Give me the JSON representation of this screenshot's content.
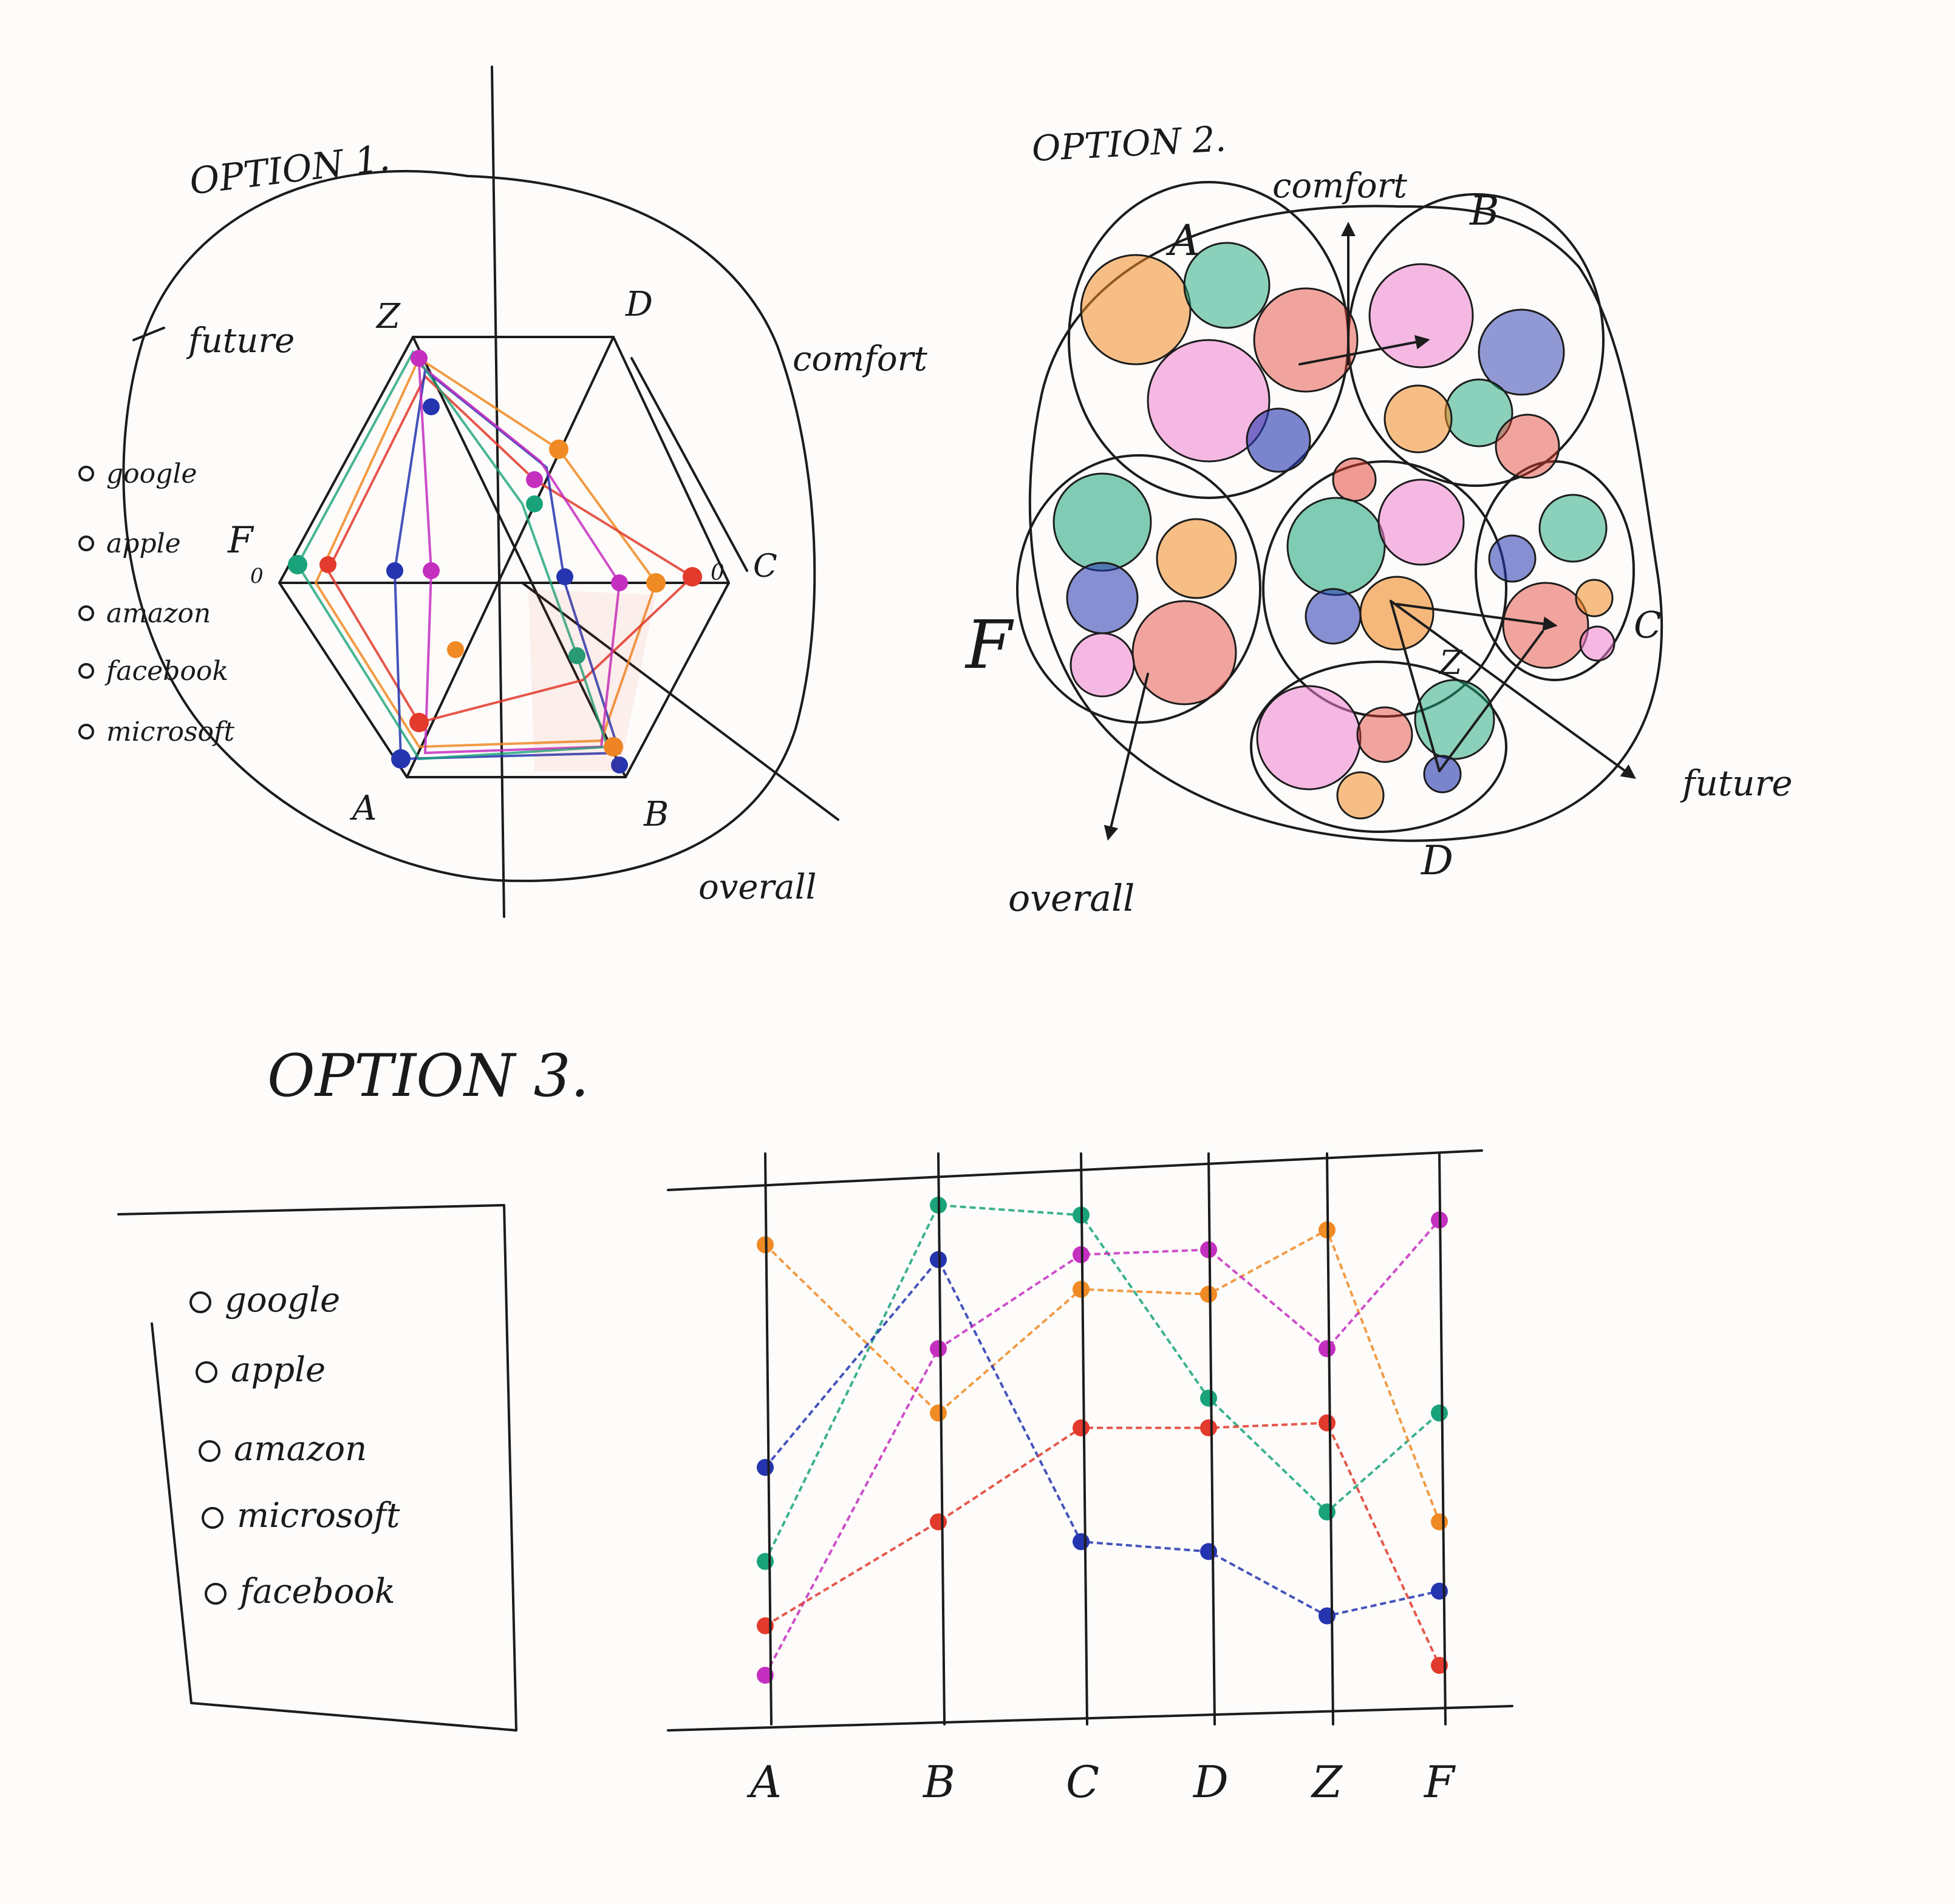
{
  "colors": {
    "ink": "#1c1c1c",
    "paper": "#fdfcfa",
    "google": "#1aa37a",
    "apple": "#f08a24",
    "amazon": "#2535b0",
    "facebook": "#c42fc0",
    "microsoft": "#e23a2c",
    "pink": "#ef7fd0"
  },
  "option1": {
    "title": "OPTION 1.",
    "axes": [
      "Z",
      "D",
      "C",
      "B",
      "A",
      "F"
    ],
    "outer_labels": {
      "future": "future",
      "comfort": "comfort",
      "overall": "overall"
    },
    "legend": [
      "google",
      "apple",
      "amazon",
      "facebook",
      "microsoft"
    ],
    "zero_label": "0"
  },
  "option2": {
    "title": "OPTION 2.",
    "cluster_labels": [
      "A",
      "B",
      "C",
      "D",
      "F",
      "Z"
    ],
    "arrow_labels": {
      "comfort": "comfort",
      "future": "future",
      "overall": "overall"
    }
  },
  "option3": {
    "title": "OPTION 3.",
    "legend": [
      "google",
      "apple",
      "amazon",
      "microsoft",
      "facebook"
    ],
    "axes": [
      "A",
      "B",
      "C",
      "D",
      "Z",
      "F"
    ],
    "series": [
      {
        "name": "google",
        "color": "#1aa37a",
        "values": [
          0.28,
          1.0,
          0.98,
          0.61,
          0.38,
          0.58
        ]
      },
      {
        "name": "apple",
        "color": "#f08a24",
        "values": [
          0.92,
          0.58,
          0.83,
          0.82,
          0.95,
          0.36
        ]
      },
      {
        "name": "amazon",
        "color": "#2535b0",
        "values": [
          0.47,
          0.89,
          0.32,
          0.3,
          0.17,
          0.22
        ]
      },
      {
        "name": "facebook",
        "color": "#c42fc0",
        "values": [
          0.05,
          0.71,
          0.9,
          0.91,
          0.71,
          0.97
        ]
      },
      {
        "name": "microsoft",
        "color": "#e23a2c",
        "values": [
          0.15,
          0.36,
          0.55,
          0.55,
          0.56,
          0.07
        ]
      }
    ]
  }
}
